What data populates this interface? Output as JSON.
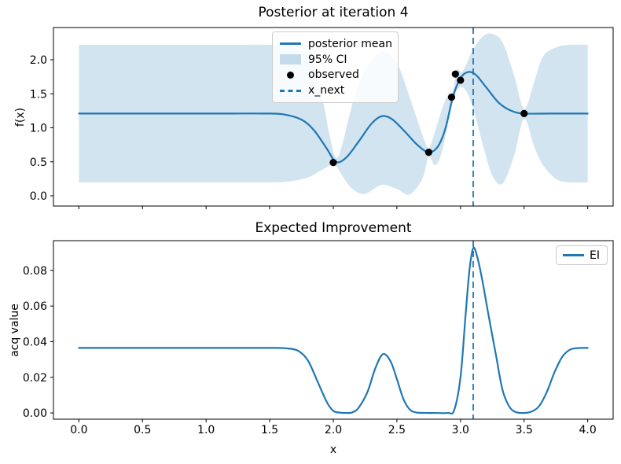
{
  "figure": {
    "background": "#ffffff",
    "accent_color": "#1f77b4",
    "band_color_flat": "#d2e4f0",
    "observed_color": "#000000"
  },
  "chart_data": [
    {
      "type": "line",
      "title": "Posterior at iteration 4",
      "xlabel": "",
      "ylabel": "f(x)",
      "xlim": [
        -0.2,
        4.2
      ],
      "ylim": [
        -0.15,
        2.474
      ],
      "xticks": [
        0.0,
        0.5,
        1.0,
        1.5,
        2.0,
        2.5,
        3.0,
        3.5,
        4.0
      ],
      "xtick_labels": [],
      "yticks": [
        0.0,
        0.5,
        1.0,
        1.5,
        2.0
      ],
      "ytick_labels": [
        "0.0",
        "0.5",
        "1.0",
        "1.5",
        "2.0"
      ],
      "grid": false,
      "x_next": 3.1,
      "legend": {
        "position": "upper-center",
        "items": [
          {
            "glyph": "line",
            "label": "posterior mean"
          },
          {
            "glyph": "patch",
            "label": "95% CI"
          },
          {
            "glyph": "dot",
            "label": "observed"
          },
          {
            "glyph": "dashed",
            "label": "x_next"
          }
        ]
      },
      "series": [
        {
          "name": "ci-band",
          "kind": "band",
          "color": "#1f77b4",
          "opacity": 0.2,
          "upper": [
            [
              0,
              2.22
            ],
            [
              0.4,
              2.22
            ],
            [
              0.8,
              2.22
            ],
            [
              1.2,
              2.22
            ],
            [
              1.5,
              2.22
            ],
            [
              1.65,
              2.2
            ],
            [
              1.8,
              2.05
            ],
            [
              1.9,
              1.55
            ],
            [
              1.97,
              0.9
            ],
            [
              2.02,
              0.56
            ],
            [
              2.07,
              0.75
            ],
            [
              2.15,
              1.35
            ],
            [
              2.25,
              1.85
            ],
            [
              2.38,
              2.12
            ],
            [
              2.5,
              1.95
            ],
            [
              2.6,
              1.45
            ],
            [
              2.7,
              0.9
            ],
            [
              2.75,
              0.7
            ],
            [
              2.8,
              0.95
            ],
            [
              2.85,
              1.25
            ],
            [
              2.9,
              1.48
            ],
            [
              2.94,
              1.54
            ],
            [
              2.97,
              1.85
            ],
            [
              3.01,
              1.82
            ],
            [
              3.05,
              1.95
            ],
            [
              3.1,
              2.16
            ],
            [
              3.18,
              2.35
            ],
            [
              3.25,
              2.38
            ],
            [
              3.33,
              2.26
            ],
            [
              3.42,
              1.78
            ],
            [
              3.5,
              1.28
            ],
            [
              3.58,
              1.68
            ],
            [
              3.65,
              2.05
            ],
            [
              3.75,
              2.18
            ],
            [
              3.85,
              2.22
            ],
            [
              4.0,
              2.22
            ]
          ],
          "lower": [
            [
              0,
              0.2
            ],
            [
              0.4,
              0.2
            ],
            [
              0.8,
              0.2
            ],
            [
              1.2,
              0.2
            ],
            [
              1.5,
              0.2
            ],
            [
              1.65,
              0.21
            ],
            [
              1.8,
              0.27
            ],
            [
              1.9,
              0.37
            ],
            [
              1.97,
              0.44
            ],
            [
              2.02,
              0.44
            ],
            [
              2.07,
              0.3
            ],
            [
              2.15,
              0.1
            ],
            [
              2.25,
              0.03
            ],
            [
              2.38,
              0.16
            ],
            [
              2.5,
              0.1
            ],
            [
              2.6,
              0.02
            ],
            [
              2.7,
              0.25
            ],
            [
              2.75,
              0.57
            ],
            [
              2.8,
              0.45
            ],
            [
              2.85,
              0.62
            ],
            [
              2.9,
              1.05
            ],
            [
              2.94,
              1.38
            ],
            [
              2.97,
              1.55
            ],
            [
              3.01,
              1.6
            ],
            [
              3.05,
              1.52
            ],
            [
              3.1,
              1.28
            ],
            [
              3.18,
              0.72
            ],
            [
              3.25,
              0.3
            ],
            [
              3.33,
              0.18
            ],
            [
              3.42,
              0.58
            ],
            [
              3.5,
              1.13
            ],
            [
              3.58,
              0.72
            ],
            [
              3.65,
              0.45
            ],
            [
              3.75,
              0.25
            ],
            [
              3.85,
              0.2
            ],
            [
              4.0,
              0.2
            ]
          ]
        },
        {
          "name": "posterior-mean",
          "kind": "line",
          "color": "#1f77b4",
          "width": 2.2,
          "points": [
            [
              0,
              1.21
            ],
            [
              0.3,
              1.21
            ],
            [
              0.6,
              1.21
            ],
            [
              0.9,
              1.21
            ],
            [
              1.2,
              1.21
            ],
            [
              1.45,
              1.21
            ],
            [
              1.6,
              1.2
            ],
            [
              1.75,
              1.12
            ],
            [
              1.85,
              0.96
            ],
            [
              1.95,
              0.69
            ],
            [
              2.02,
              0.5
            ],
            [
              2.1,
              0.56
            ],
            [
              2.2,
              0.8
            ],
            [
              2.3,
              1.06
            ],
            [
              2.38,
              1.17
            ],
            [
              2.46,
              1.13
            ],
            [
              2.56,
              0.95
            ],
            [
              2.66,
              0.75
            ],
            [
              2.75,
              0.64
            ],
            [
              2.82,
              0.72
            ],
            [
              2.88,
              0.98
            ],
            [
              2.94,
              1.45
            ],
            [
              3.0,
              1.73
            ],
            [
              3.06,
              1.82
            ],
            [
              3.12,
              1.78
            ],
            [
              3.2,
              1.6
            ],
            [
              3.3,
              1.37
            ],
            [
              3.4,
              1.25
            ],
            [
              3.5,
              1.21
            ],
            [
              3.7,
              1.21
            ],
            [
              4.0,
              1.21
            ]
          ]
        },
        {
          "name": "observed",
          "kind": "scatter",
          "color": "#000000",
          "r": 4.6,
          "points": [
            [
              2.0,
              0.49
            ],
            [
              2.75,
              0.64
            ],
            [
              2.93,
              1.45
            ],
            [
              2.96,
              1.79
            ],
            [
              3.0,
              1.7
            ],
            [
              3.5,
              1.21
            ]
          ]
        },
        {
          "name": "x-next",
          "kind": "vline",
          "x": 3.1,
          "color": "#1f77b4",
          "dash": true,
          "width": 1.8
        }
      ]
    },
    {
      "type": "line",
      "title": "Expected Improvement",
      "xlabel": "x",
      "ylabel": "acq value",
      "xlim": [
        -0.2,
        4.2
      ],
      "ylim": [
        -0.0035,
        0.0967
      ],
      "xticks": [
        0.0,
        0.5,
        1.0,
        1.5,
        2.0,
        2.5,
        3.0,
        3.5,
        4.0
      ],
      "xtick_labels": [
        "0.0",
        "0.5",
        "1.0",
        "1.5",
        "2.0",
        "2.5",
        "3.0",
        "3.5",
        "4.0"
      ],
      "yticks": [
        0.0,
        0.02,
        0.04,
        0.06,
        0.08
      ],
      "ytick_labels": [
        "0.00",
        "0.02",
        "0.04",
        "0.06",
        "0.08"
      ],
      "grid": false,
      "x_next": 3.1,
      "legend": {
        "position": "upper-right",
        "items": [
          {
            "glyph": "line",
            "label": "EI"
          }
        ]
      },
      "series": [
        {
          "name": "ei-curve",
          "kind": "line",
          "color": "#1f77b4",
          "width": 2.2,
          "points": [
            [
              0,
              0.0365
            ],
            [
              0.4,
              0.0365
            ],
            [
              0.8,
              0.0365
            ],
            [
              1.2,
              0.0365
            ],
            [
              1.5,
              0.0365
            ],
            [
              1.62,
              0.0363
            ],
            [
              1.72,
              0.035
            ],
            [
              1.8,
              0.0295
            ],
            [
              1.88,
              0.017
            ],
            [
              1.95,
              0.006
            ],
            [
              2.0,
              0.0012
            ],
            [
              2.05,
              0.0002
            ],
            [
              2.1,
              0
            ],
            [
              2.15,
              0.0003
            ],
            [
              2.2,
              0.003
            ],
            [
              2.27,
              0.012
            ],
            [
              2.33,
              0.025
            ],
            [
              2.39,
              0.033
            ],
            [
              2.45,
              0.029
            ],
            [
              2.5,
              0.019
            ],
            [
              2.55,
              0.008
            ],
            [
              2.6,
              0.002
            ],
            [
              2.65,
              0.0003
            ],
            [
              2.72,
              0
            ],
            [
              2.8,
              0
            ],
            [
              2.9,
              0
            ],
            [
              2.95,
              0.0015
            ],
            [
              3.0,
              0.02
            ],
            [
              3.04,
              0.055
            ],
            [
              3.07,
              0.08
            ],
            [
              3.1,
              0.0925
            ],
            [
              3.13,
              0.088
            ],
            [
              3.17,
              0.075
            ],
            [
              3.22,
              0.055
            ],
            [
              3.28,
              0.032
            ],
            [
              3.33,
              0.013
            ],
            [
              3.38,
              0.004
            ],
            [
              3.43,
              0.0006
            ],
            [
              3.5,
              0
            ],
            [
              3.56,
              0.0008
            ],
            [
              3.62,
              0.004
            ],
            [
              3.68,
              0.012
            ],
            [
              3.74,
              0.023
            ],
            [
              3.8,
              0.0315
            ],
            [
              3.86,
              0.0355
            ],
            [
              3.92,
              0.0364
            ],
            [
              4.0,
              0.0365
            ]
          ]
        },
        {
          "name": "x-next",
          "kind": "vline",
          "x": 3.1,
          "color": "#1f77b4",
          "dash": true,
          "width": 1.8
        }
      ]
    }
  ]
}
